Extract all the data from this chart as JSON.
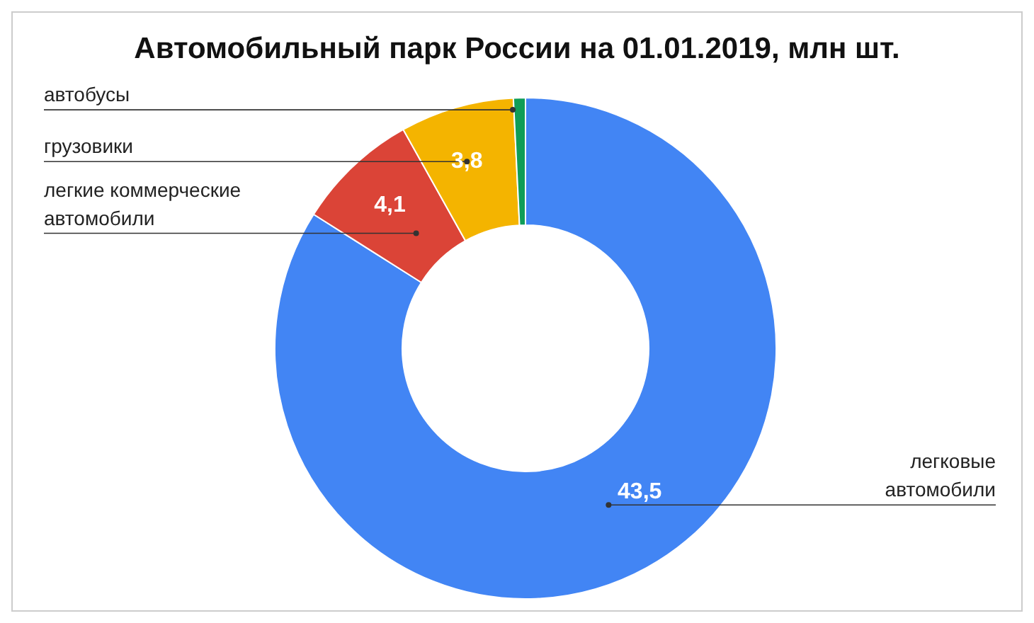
{
  "chart_data": {
    "type": "donut",
    "title": "Автомобильный парк России на 01.01.2019, млн шт.",
    "categories": [
      "легковые автомобили",
      "легкие коммерческие автомобили",
      "грузовики",
      "автобусы"
    ],
    "values": [
      43.5,
      4.1,
      3.8,
      0.4
    ],
    "value_labels": [
      "43,5",
      "4,1",
      "3,8",
      null
    ],
    "colors": [
      "#4285f4",
      "#db4437",
      "#f4b400",
      "#0f9d58"
    ],
    "legend": false
  }
}
